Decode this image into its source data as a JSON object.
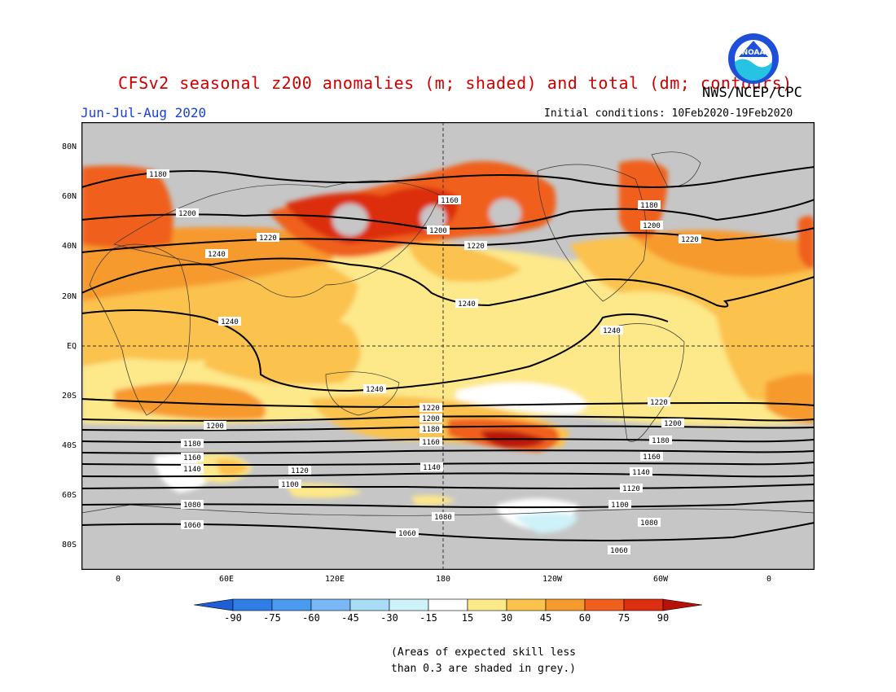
{
  "title": "CFSv2 seasonal z200 anomalies (m; shaded) and total (dm; contours)",
  "agency": "NWS/NCEP/CPC",
  "season": "Jun-Jul-Aug 2020",
  "initial_conditions": "Initial conditions: 10Feb2020-19Feb2020",
  "logo_text": "NOAA",
  "note_line1": "(Areas of expected skill less",
  "note_line2": "than 0.3 are shaded in grey.)",
  "lat_labels": [
    "80N",
    "60N",
    "40N",
    "20N",
    "EQ",
    "20S",
    "40S",
    "60S",
    "80S"
  ],
  "lon_labels": [
    "0",
    "60E",
    "120E",
    "180",
    "120W",
    "60W",
    "0"
  ],
  "colorbar": {
    "labels": [
      "-90",
      "-75",
      "-60",
      "-45",
      "-30",
      "-15",
      "15",
      "30",
      "45",
      "60",
      "75",
      "90"
    ],
    "colors": [
      "#1f5fd6",
      "#2f7ee6",
      "#4a9af0",
      "#7ab8f5",
      "#a9dcf7",
      "#cdf2f8",
      "#ffffff",
      "#fde88a",
      "#fbc24e",
      "#f79a2e",
      "#f0601c",
      "#dc2e10",
      "#b81208"
    ]
  },
  "contour_labels": [
    "1180",
    "1200",
    "1220",
    "1240",
    "1160",
    "1200",
    "1220",
    "1180",
    "1200",
    "1220",
    "1240",
    "1240",
    "1240",
    "1240",
    "1220",
    "1200",
    "1180",
    "1160",
    "1220",
    "1200",
    "1180",
    "1160",
    "1140",
    "1120",
    "1200",
    "1180",
    "1160",
    "1140",
    "1140",
    "1120",
    "1100",
    "1080",
    "1060",
    "1080",
    "1060",
    "1100",
    "1080",
    "1060"
  ]
}
